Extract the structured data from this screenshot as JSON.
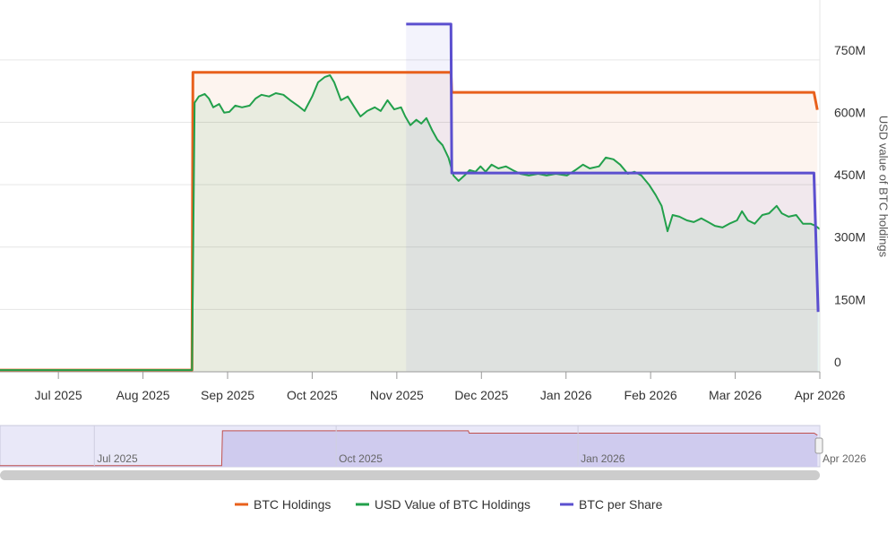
{
  "chart_data": {
    "type": "line",
    "y_label": "USD value of BTC holdings",
    "xlim": [
      5.31,
      15
    ],
    "xticks": [
      {
        "value": 6,
        "label": "Jul 2025"
      },
      {
        "value": 7,
        "label": "Aug 2025"
      },
      {
        "value": 8,
        "label": "Sep 2025"
      },
      {
        "value": 9,
        "label": "Oct 2025"
      },
      {
        "value": 10,
        "label": "Nov 2025"
      },
      {
        "value": 11,
        "label": "Dec 2025"
      },
      {
        "value": 12,
        "label": "Jan 2026"
      },
      {
        "value": 13,
        "label": "Feb 2026"
      },
      {
        "value": 14,
        "label": "Mar 2026"
      },
      {
        "value": 15,
        "label": "Apr 2026"
      }
    ],
    "ylim": [
      0,
      894
    ],
    "yticks": [
      0,
      {
        "value": 150,
        "label": "150M"
      },
      {
        "value": 300,
        "label": "300M"
      },
      {
        "value": 450,
        "label": "450M"
      },
      {
        "value": 600,
        "label": "600M"
      },
      {
        "value": 750,
        "label": "750M"
      }
    ],
    "grid": true,
    "legend": "bottom",
    "series": [
      {
        "name": "BTC Holdings",
        "color": "#e8601c",
        "x": [
          4.83,
          7.58,
          7.59,
          10.64,
          10.65,
          14.93,
          14.97
        ],
        "values": [
          4,
          4,
          720,
          720,
          672,
          672,
          630
        ]
      },
      {
        "name": "USD Value of BTC Holdings",
        "color": "#22a04b",
        "x": [
          4.83,
          7.58,
          7.61,
          7.66,
          7.73,
          7.78,
          7.83,
          7.9,
          7.96,
          8.02,
          8.09,
          8.17,
          8.26,
          8.33,
          8.4,
          8.49,
          8.57,
          8.66,
          8.74,
          8.83,
          8.91,
          9.0,
          9.07,
          9.15,
          9.21,
          9.26,
          9.34,
          9.42,
          9.5,
          9.57,
          9.65,
          9.74,
          9.81,
          9.89,
          9.97,
          10.05,
          10.1,
          10.16,
          10.23,
          10.29,
          10.35,
          10.42,
          10.48,
          10.54,
          10.61,
          10.67,
          10.73,
          10.8,
          10.86,
          10.93,
          10.99,
          11.05,
          11.12,
          11.2,
          11.29,
          11.37,
          11.46,
          11.56,
          11.67,
          11.77,
          11.88,
          12.01,
          12.11,
          12.2,
          12.28,
          12.39,
          12.47,
          12.56,
          12.64,
          12.73,
          12.81,
          12.89,
          12.98,
          13.06,
          13.13,
          13.2,
          13.26,
          13.34,
          13.43,
          13.51,
          13.6,
          13.68,
          13.76,
          13.85,
          13.93,
          14.02,
          14.08,
          14.15,
          14.23,
          14.32,
          14.4,
          14.49,
          14.55,
          14.63,
          14.72,
          14.8,
          14.89,
          14.95,
          15.0
        ],
        "values": [
          4,
          4,
          647,
          662,
          668,
          657,
          636,
          644,
          623,
          625,
          640,
          636,
          640,
          657,
          666,
          662,
          670,
          666,
          653,
          640,
          627,
          662,
          696,
          709,
          713,
          696,
          653,
          662,
          636,
          614,
          627,
          636,
          627,
          653,
          631,
          636,
          614,
          593,
          606,
          597,
          610,
          580,
          558,
          545,
          515,
          472,
          459,
          472,
          485,
          481,
          494,
          481,
          498,
          489,
          494,
          485,
          476,
          472,
          476,
          472,
          476,
          472,
          485,
          498,
          489,
          494,
          515,
          511,
          498,
          476,
          481,
          472,
          450,
          425,
          399,
          338,
          377,
          373,
          364,
          360,
          369,
          360,
          351,
          347,
          356,
          364,
          386,
          364,
          356,
          377,
          381,
          399,
          381,
          373,
          377,
          356,
          356,
          351,
          343
        ]
      },
      {
        "name": "BTC per Share",
        "color": "#5b4fcf",
        "x": [
          10.11,
          10.64,
          10.65,
          14.93,
          14.98
        ],
        "values": [
          836,
          836,
          478,
          478,
          144
        ]
      }
    ],
    "navigator": {
      "xlim": [
        4.83,
        15
      ],
      "xticks": [
        {
          "value": 6,
          "label": "Jul 2025"
        },
        {
          "value": 9,
          "label": "Oct 2025"
        },
        {
          "value": 12,
          "label": "Jan 2026"
        },
        {
          "value": 15,
          "label": "Apr 2026"
        }
      ]
    }
  }
}
